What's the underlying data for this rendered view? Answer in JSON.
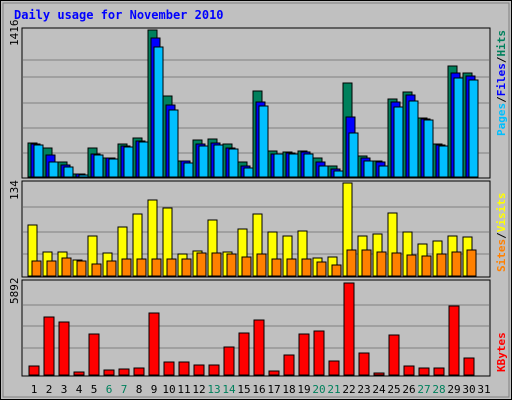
{
  "chart_data": [
    {
      "type": "bar",
      "title": "Daily usage for November 2010",
      "categories": [
        "1",
        "2",
        "3",
        "4",
        "5",
        "6",
        "7",
        "8",
        "9",
        "10",
        "11",
        "12",
        "13",
        "14",
        "15",
        "16",
        "17",
        "18",
        "19",
        "20",
        "21",
        "22",
        "23",
        "24",
        "25",
        "26",
        "27",
        "28",
        "29",
        "30",
        "31"
      ],
      "weekend_days": [
        "6",
        "7",
        "13",
        "14",
        "20",
        "21",
        "27",
        "28"
      ],
      "y_tick_label": "1416",
      "ylim": [
        0,
        1416
      ],
      "right_axis_labels": [
        "Pages",
        "/",
        "Files",
        "/",
        "Hits"
      ],
      "series": [
        {
          "name": "Hits",
          "color": "#00805c",
          "values": [
            330,
            280,
            140,
            30,
            275,
            185,
            320,
            380,
            1416,
            780,
            155,
            360,
            365,
            320,
            140,
            830,
            250,
            240,
            255,
            180,
            110,
            910,
            200,
            155,
            750,
            820,
            570,
            320,
            1070,
            1000,
            0
          ]
        },
        {
          "name": "Files",
          "color": "#0000ff",
          "values": [
            320,
            215,
            120,
            25,
            225,
            185,
            300,
            350,
            1340,
            690,
            150,
            320,
            325,
            280,
            110,
            720,
            225,
            230,
            240,
            140,
            80,
            580,
            180,
            140,
            720,
            790,
            560,
            310,
            1000,
            970,
            0
          ]
        },
        {
          "name": "Pages",
          "color": "#00bfff",
          "values": [
            310,
            145,
            100,
            20,
            210,
            175,
            290,
            340,
            1250,
            650,
            135,
            300,
            310,
            265,
            90,
            680,
            220,
            220,
            225,
            105,
            60,
            420,
            155,
            110,
            670,
            730,
            550,
            300,
            950,
            930,
            0
          ]
        }
      ]
    },
    {
      "type": "bar",
      "categories": [
        "1",
        "2",
        "3",
        "4",
        "5",
        "6",
        "7",
        "8",
        "9",
        "10",
        "11",
        "12",
        "13",
        "14",
        "15",
        "16",
        "17",
        "18",
        "19",
        "20",
        "21",
        "22",
        "23",
        "24",
        "25",
        "26",
        "27",
        "28",
        "29",
        "30",
        "31"
      ],
      "y_tick_label": "134",
      "ylim": [
        0,
        134
      ],
      "right_axis_labels": [
        "Sites",
        "/",
        "Visits"
      ],
      "series": [
        {
          "name": "Visits",
          "color": "#ffff00",
          "values": [
            73,
            35,
            35,
            23,
            57,
            33,
            71,
            90,
            110,
            98,
            32,
            36,
            81,
            34,
            67,
            90,
            63,
            58,
            65,
            26,
            27,
            134,
            57,
            60,
            91,
            63,
            46,
            51,
            57,
            56,
            0
          ]
        },
        {
          "name": "Sites",
          "color": "#ff8000",
          "values": [
            21,
            22,
            26,
            21,
            18,
            21,
            25,
            25,
            25,
            25,
            25,
            33,
            33,
            31,
            27,
            32,
            25,
            25,
            25,
            20,
            16,
            38,
            38,
            34,
            33,
            30,
            29,
            32,
            34,
            38,
            0
          ]
        }
      ]
    },
    {
      "type": "bar",
      "categories": [
        "1",
        "2",
        "3",
        "4",
        "5",
        "6",
        "7",
        "8",
        "9",
        "10",
        "11",
        "12",
        "13",
        "14",
        "15",
        "16",
        "17",
        "18",
        "19",
        "20",
        "21",
        "22",
        "23",
        "24",
        "25",
        "26",
        "27",
        "28",
        "29",
        "30",
        "31"
      ],
      "y_tick_label": "5892",
      "ylim": [
        0,
        5892
      ],
      "right_axis_labels": [
        "KBytes"
      ],
      "series": [
        {
          "name": "KBytes",
          "color": "#ff0000",
          "values": [
            550,
            3700,
            3400,
            220,
            2650,
            350,
            400,
            460,
            3950,
            850,
            830,
            650,
            650,
            1800,
            2700,
            3500,
            250,
            1250,
            2600,
            2800,
            880,
            5892,
            1400,
            130,
            2550,
            560,
            450,
            460,
            4450,
            1100,
            0
          ]
        }
      ]
    }
  ]
}
